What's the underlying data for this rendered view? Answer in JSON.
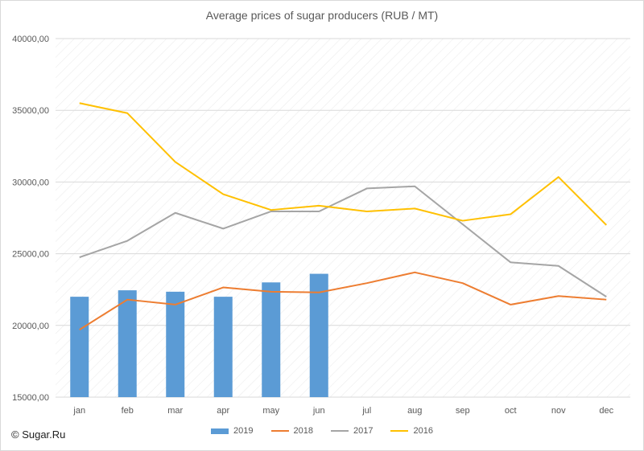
{
  "chart_data": {
    "type": "bar",
    "title": "Average prices of sugar producers (RUB / MT)",
    "xlabel": "",
    "ylabel": "",
    "categories": [
      "jan",
      "feb",
      "mar",
      "apr",
      "may",
      "jun",
      "jul",
      "aug",
      "sep",
      "oct",
      "nov",
      "dec"
    ],
    "ylim": [
      15000,
      40000
    ],
    "yticks": [
      "15000,00",
      "20000,00",
      "25000,00",
      "30000,00",
      "35000,00",
      "40000,00"
    ],
    "grid": true,
    "legend_position": "bottom",
    "series": [
      {
        "name": "2019",
        "type": "bar",
        "color": "#5b9bd5",
        "values": [
          22000,
          22450,
          22350,
          22000,
          23000,
          23600,
          null,
          null,
          null,
          null,
          null,
          null
        ]
      },
      {
        "name": "2018",
        "type": "line",
        "color": "#ed7d31",
        "values": [
          19700,
          21800,
          21450,
          22650,
          22350,
          22300,
          22950,
          23700,
          22950,
          21450,
          22050,
          21800
        ]
      },
      {
        "name": "2017",
        "type": "line",
        "color": "#a5a5a5",
        "values": [
          24750,
          25900,
          27850,
          26750,
          27950,
          27950,
          29550,
          29700,
          27050,
          24400,
          24150,
          22000
        ]
      },
      {
        "name": "2016",
        "type": "line",
        "color": "#ffc000",
        "values": [
          35500,
          34800,
          31400,
          29150,
          28050,
          28350,
          27950,
          28150,
          27300,
          27750,
          30350,
          27000
        ]
      }
    ]
  },
  "footer": {
    "copyright": "© Sugar.Ru"
  }
}
